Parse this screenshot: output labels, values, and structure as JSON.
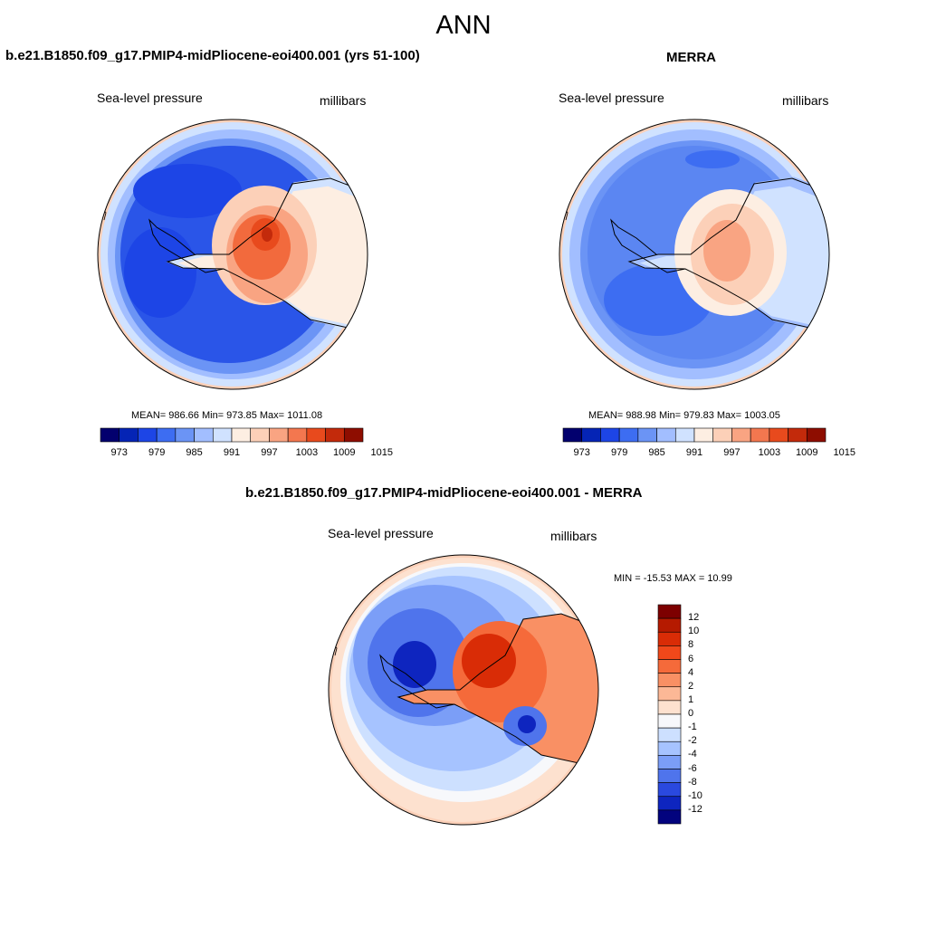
{
  "main_title": "ANN",
  "panels": {
    "model": {
      "title": "b.e21.B1850.f09_g17.PMIP4-midPliocene-eoi400.001 (yrs 51-100)",
      "variable": "Sea-level pressure",
      "units": "millibars",
      "stats": "MEAN= 986.66  Min= 973.85  Max= 1011.08"
    },
    "obs": {
      "title": "MERRA",
      "variable": "Sea-level pressure",
      "units": "millibars",
      "stats": "MEAN= 988.98  Min= 979.83  Max= 1003.05"
    },
    "diff": {
      "title": "b.e21.B1850.f09_g17.PMIP4-midPliocene-eoi400.001 - MERRA",
      "variable": "Sea-level pressure",
      "units": "millibars",
      "stats": "MIN = -15.53 MAX =  10.99"
    }
  },
  "colorbar_abs": {
    "labels": [
      "973",
      "979",
      "985",
      "991",
      "997",
      "1003",
      "1009",
      "1015"
    ],
    "colors": [
      "#02006e",
      "#0524b5",
      "#1d45e6",
      "#3d6df2",
      "#6b94f5",
      "#a2beff",
      "#d0e2ff",
      "#fdeee2",
      "#fcd0b8",
      "#f9a482",
      "#f3774f",
      "#e84a1d",
      "#c32a0b",
      "#8e0d00"
    ]
  },
  "colorbar_diff": {
    "labels": [
      "12",
      "10",
      "8",
      "6",
      "4",
      "2",
      "1",
      "0",
      "-1",
      "-2",
      "-4",
      "-6",
      "-8",
      "-10",
      "-12"
    ],
    "colors": [
      "#7d0000",
      "#b51a00",
      "#d92c06",
      "#f0481a",
      "#f56a3a",
      "#f99064",
      "#fcb896",
      "#fde1cf",
      "#f7f8fb",
      "#cde0ff",
      "#a6c3ff",
      "#7b9ef7",
      "#4f74ec",
      "#2a49df",
      "#0e25bf",
      "#02037e"
    ]
  },
  "legend": {
    "ocean_low": "#2a55e8",
    "ocean_mid": "#5b86f2",
    "ocean_high": "#9fbcfb",
    "land_high": "#f26a3d",
    "coast": "#000000"
  }
}
